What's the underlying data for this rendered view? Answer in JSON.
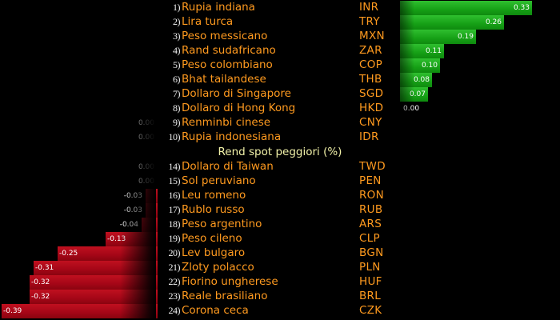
{
  "section_header": "Rend spot peggiori (%)",
  "colors": {
    "currency_text": "#ff9a1f",
    "rank_text": "#f0f0f0",
    "section_text": "#f1f1a8",
    "positive_bar": "#16a016",
    "negative_bar": "#a40617",
    "background": "#000000"
  },
  "top_rows": [
    {
      "rank": "1",
      "name": "Rupia indiana",
      "code": "INR",
      "value": 0.33,
      "value_label": "0.33"
    },
    {
      "rank": "2",
      "name": "Lira turca",
      "code": "TRY",
      "value": 0.26,
      "value_label": "0.26"
    },
    {
      "rank": "3",
      "name": "Peso messicano",
      "code": "MXN",
      "value": 0.19,
      "value_label": "0.19"
    },
    {
      "rank": "4",
      "name": "Rand sudafricano",
      "code": "ZAR",
      "value": 0.11,
      "value_label": "0.11"
    },
    {
      "rank": "5",
      "name": "Peso colombiano",
      "code": "COP",
      "value": 0.1,
      "value_label": "0.10"
    },
    {
      "rank": "6",
      "name": "Bhat tailandese",
      "code": "THB",
      "value": 0.08,
      "value_label": "0.08"
    },
    {
      "rank": "7",
      "name": "Dollaro di Singapore",
      "code": "SGD",
      "value": 0.07,
      "value_label": "0.07"
    },
    {
      "rank": "8",
      "name": "Dollaro di Hong Kong",
      "code": "HKD",
      "value": 0.0,
      "value_label": "0.00"
    },
    {
      "rank": "9",
      "name": "Renminbi cinese",
      "code": "CNY",
      "value": 0.0,
      "value_label": "0.00"
    },
    {
      "rank": "10",
      "name": "Rupia indonesiana",
      "code": "IDR",
      "value": 0.0,
      "value_label": "0.00"
    }
  ],
  "bottom_rows": [
    {
      "rank": "14",
      "name": "Dollaro di Taiwan",
      "code": "TWD",
      "value": 0.0,
      "value_label": "0.00"
    },
    {
      "rank": "15",
      "name": "Sol peruviano",
      "code": "PEN",
      "value": 0.0,
      "value_label": "0.00"
    },
    {
      "rank": "16",
      "name": "Leu romeno",
      "code": "RON",
      "value": -0.03,
      "value_label": "-0.03"
    },
    {
      "rank": "17",
      "name": "Rublo russo",
      "code": "RUB",
      "value": -0.03,
      "value_label": "-0.03"
    },
    {
      "rank": "18",
      "name": "Peso argentino",
      "code": "ARS",
      "value": -0.04,
      "value_label": "-0.04"
    },
    {
      "rank": "19",
      "name": "Peso cileno",
      "code": "CLP",
      "value": -0.13,
      "value_label": "-0.13"
    },
    {
      "rank": "20",
      "name": "Lev bulgaro",
      "code": "BGN",
      "value": -0.25,
      "value_label": "-0.25"
    },
    {
      "rank": "21",
      "name": "Zloty polacco",
      "code": "PLN",
      "value": -0.31,
      "value_label": "-0.31"
    },
    {
      "rank": "22",
      "name": "Fiorino ungherese",
      "code": "HUF",
      "value": -0.32,
      "value_label": "-0.32"
    },
    {
      "rank": "23",
      "name": "Reale brasiliano",
      "code": "BRL",
      "value": -0.32,
      "value_label": "-0.32"
    },
    {
      "rank": "24",
      "name": "Corona ceca",
      "code": "CZK",
      "value": -0.39,
      "value_label": "-0.39"
    }
  ]
}
